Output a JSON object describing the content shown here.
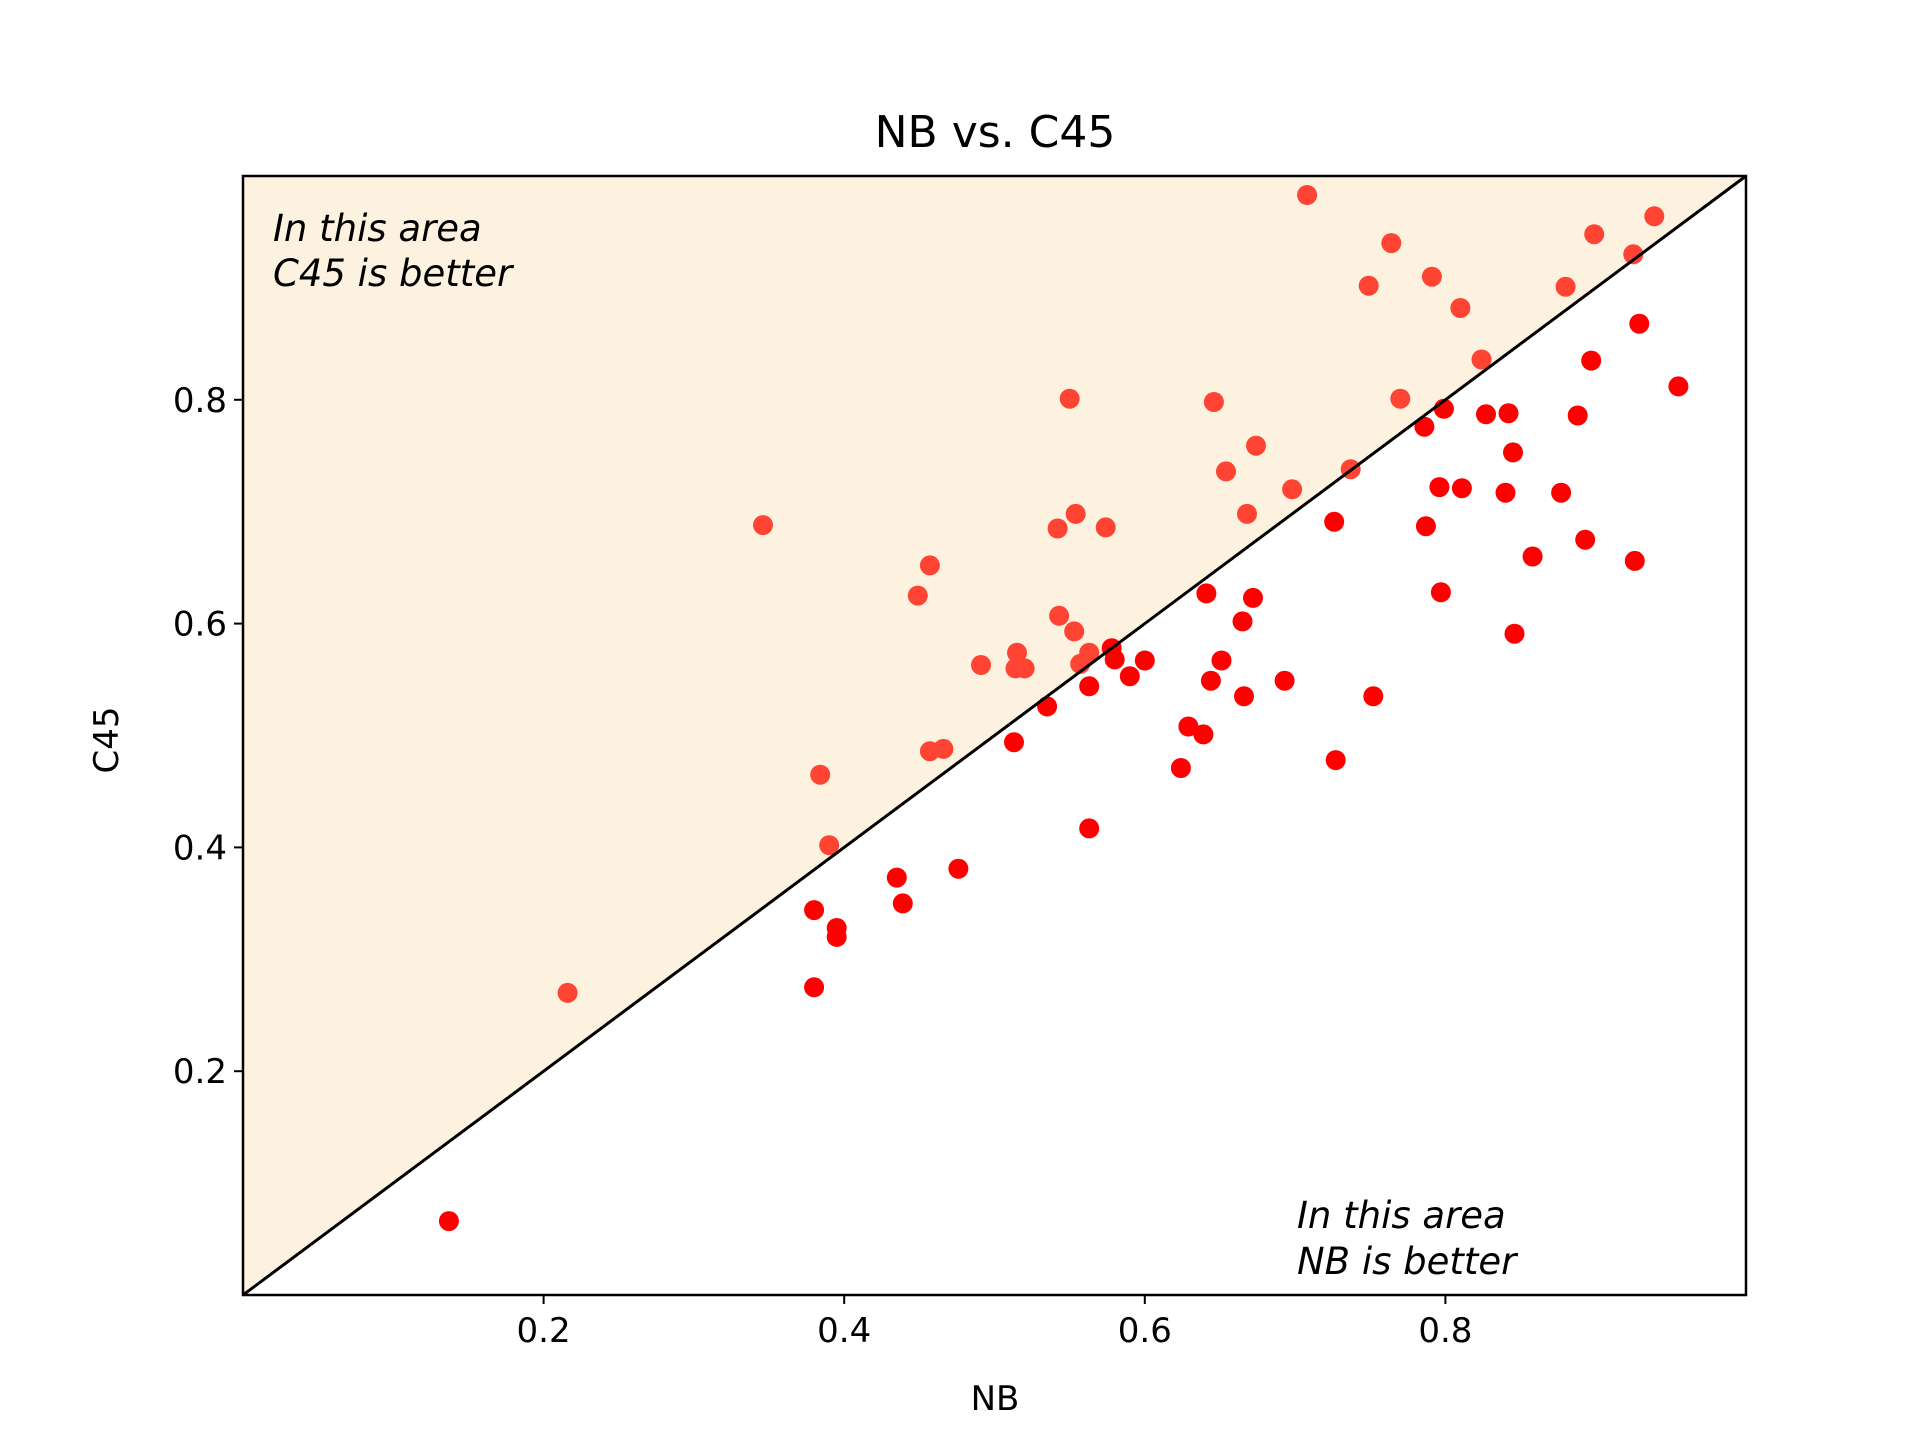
{
  "chart_data": {
    "type": "scatter",
    "title": "NB vs. C45",
    "xlabel": "NB",
    "ylabel": "C45",
    "xlim": [
      0.0,
      1.0
    ],
    "ylim": [
      0.0,
      1.0
    ],
    "xticks": [
      "0.2",
      "0.4",
      "0.6",
      "0.8"
    ],
    "yticks": [
      "0.2",
      "0.4",
      "0.6",
      "0.8"
    ],
    "grid": false,
    "legend": "none",
    "annotations": {
      "upper_left": [
        "In this area",
        "C45 is better"
      ],
      "lower_right": [
        "In this area",
        "NB is better"
      ]
    },
    "colors": {
      "upper_region_fill": "#fdf2df",
      "point_above_diagonal": "#ff4433",
      "point_below_diagonal": "#ff0000",
      "diagonal_line": "#000000"
    },
    "points": [
      [
        0.137,
        0.066
      ],
      [
        0.216,
        0.27
      ],
      [
        0.346,
        0.688
      ],
      [
        0.38,
        0.344
      ],
      [
        0.38,
        0.275
      ],
      [
        0.384,
        0.465
      ],
      [
        0.39,
        0.402
      ],
      [
        0.395,
        0.328
      ],
      [
        0.395,
        0.32
      ],
      [
        0.435,
        0.373
      ],
      [
        0.439,
        0.35
      ],
      [
        0.449,
        0.625
      ],
      [
        0.457,
        0.652
      ],
      [
        0.457,
        0.486
      ],
      [
        0.466,
        0.488
      ],
      [
        0.476,
        0.381
      ],
      [
        0.491,
        0.563
      ],
      [
        0.513,
        0.494
      ],
      [
        0.514,
        0.56
      ],
      [
        0.515,
        0.574
      ],
      [
        0.52,
        0.56
      ],
      [
        0.535,
        0.526
      ],
      [
        0.542,
        0.685
      ],
      [
        0.543,
        0.607
      ],
      [
        0.55,
        0.801
      ],
      [
        0.553,
        0.593
      ],
      [
        0.554,
        0.698
      ],
      [
        0.557,
        0.564
      ],
      [
        0.563,
        0.574
      ],
      [
        0.563,
        0.544
      ],
      [
        0.563,
        0.417
      ],
      [
        0.574,
        0.686
      ],
      [
        0.578,
        0.578
      ],
      [
        0.58,
        0.568
      ],
      [
        0.59,
        0.553
      ],
      [
        0.6,
        0.567
      ],
      [
        0.624,
        0.471
      ],
      [
        0.629,
        0.508
      ],
      [
        0.639,
        0.501
      ],
      [
        0.641,
        0.627
      ],
      [
        0.644,
        0.549
      ],
      [
        0.646,
        0.798
      ],
      [
        0.651,
        0.567
      ],
      [
        0.654,
        0.736
      ],
      [
        0.665,
        0.602
      ],
      [
        0.666,
        0.535
      ],
      [
        0.668,
        0.698
      ],
      [
        0.672,
        0.623
      ],
      [
        0.674,
        0.759
      ],
      [
        0.693,
        0.549
      ],
      [
        0.698,
        0.72
      ],
      [
        0.708,
        0.983
      ],
      [
        0.726,
        0.691
      ],
      [
        0.727,
        0.478
      ],
      [
        0.737,
        0.738
      ],
      [
        0.749,
        0.902
      ],
      [
        0.752,
        0.535
      ],
      [
        0.764,
        0.94
      ],
      [
        0.77,
        0.801
      ],
      [
        0.786,
        0.776
      ],
      [
        0.787,
        0.687
      ],
      [
        0.791,
        0.91
      ],
      [
        0.796,
        0.722
      ],
      [
        0.797,
        0.628
      ],
      [
        0.799,
        0.792
      ],
      [
        0.81,
        0.882
      ],
      [
        0.811,
        0.721
      ],
      [
        0.824,
        0.836
      ],
      [
        0.827,
        0.787
      ],
      [
        0.84,
        0.717
      ],
      [
        0.842,
        0.788
      ],
      [
        0.845,
        0.753
      ],
      [
        0.846,
        0.591
      ],
      [
        0.858,
        0.66
      ],
      [
        0.877,
        0.717
      ],
      [
        0.88,
        0.901
      ],
      [
        0.888,
        0.786
      ],
      [
        0.893,
        0.675
      ],
      [
        0.897,
        0.835
      ],
      [
        0.899,
        0.948
      ],
      [
        0.925,
        0.93
      ],
      [
        0.926,
        0.656
      ],
      [
        0.929,
        0.868
      ],
      [
        0.939,
        0.964
      ],
      [
        0.955,
        0.812
      ]
    ]
  }
}
